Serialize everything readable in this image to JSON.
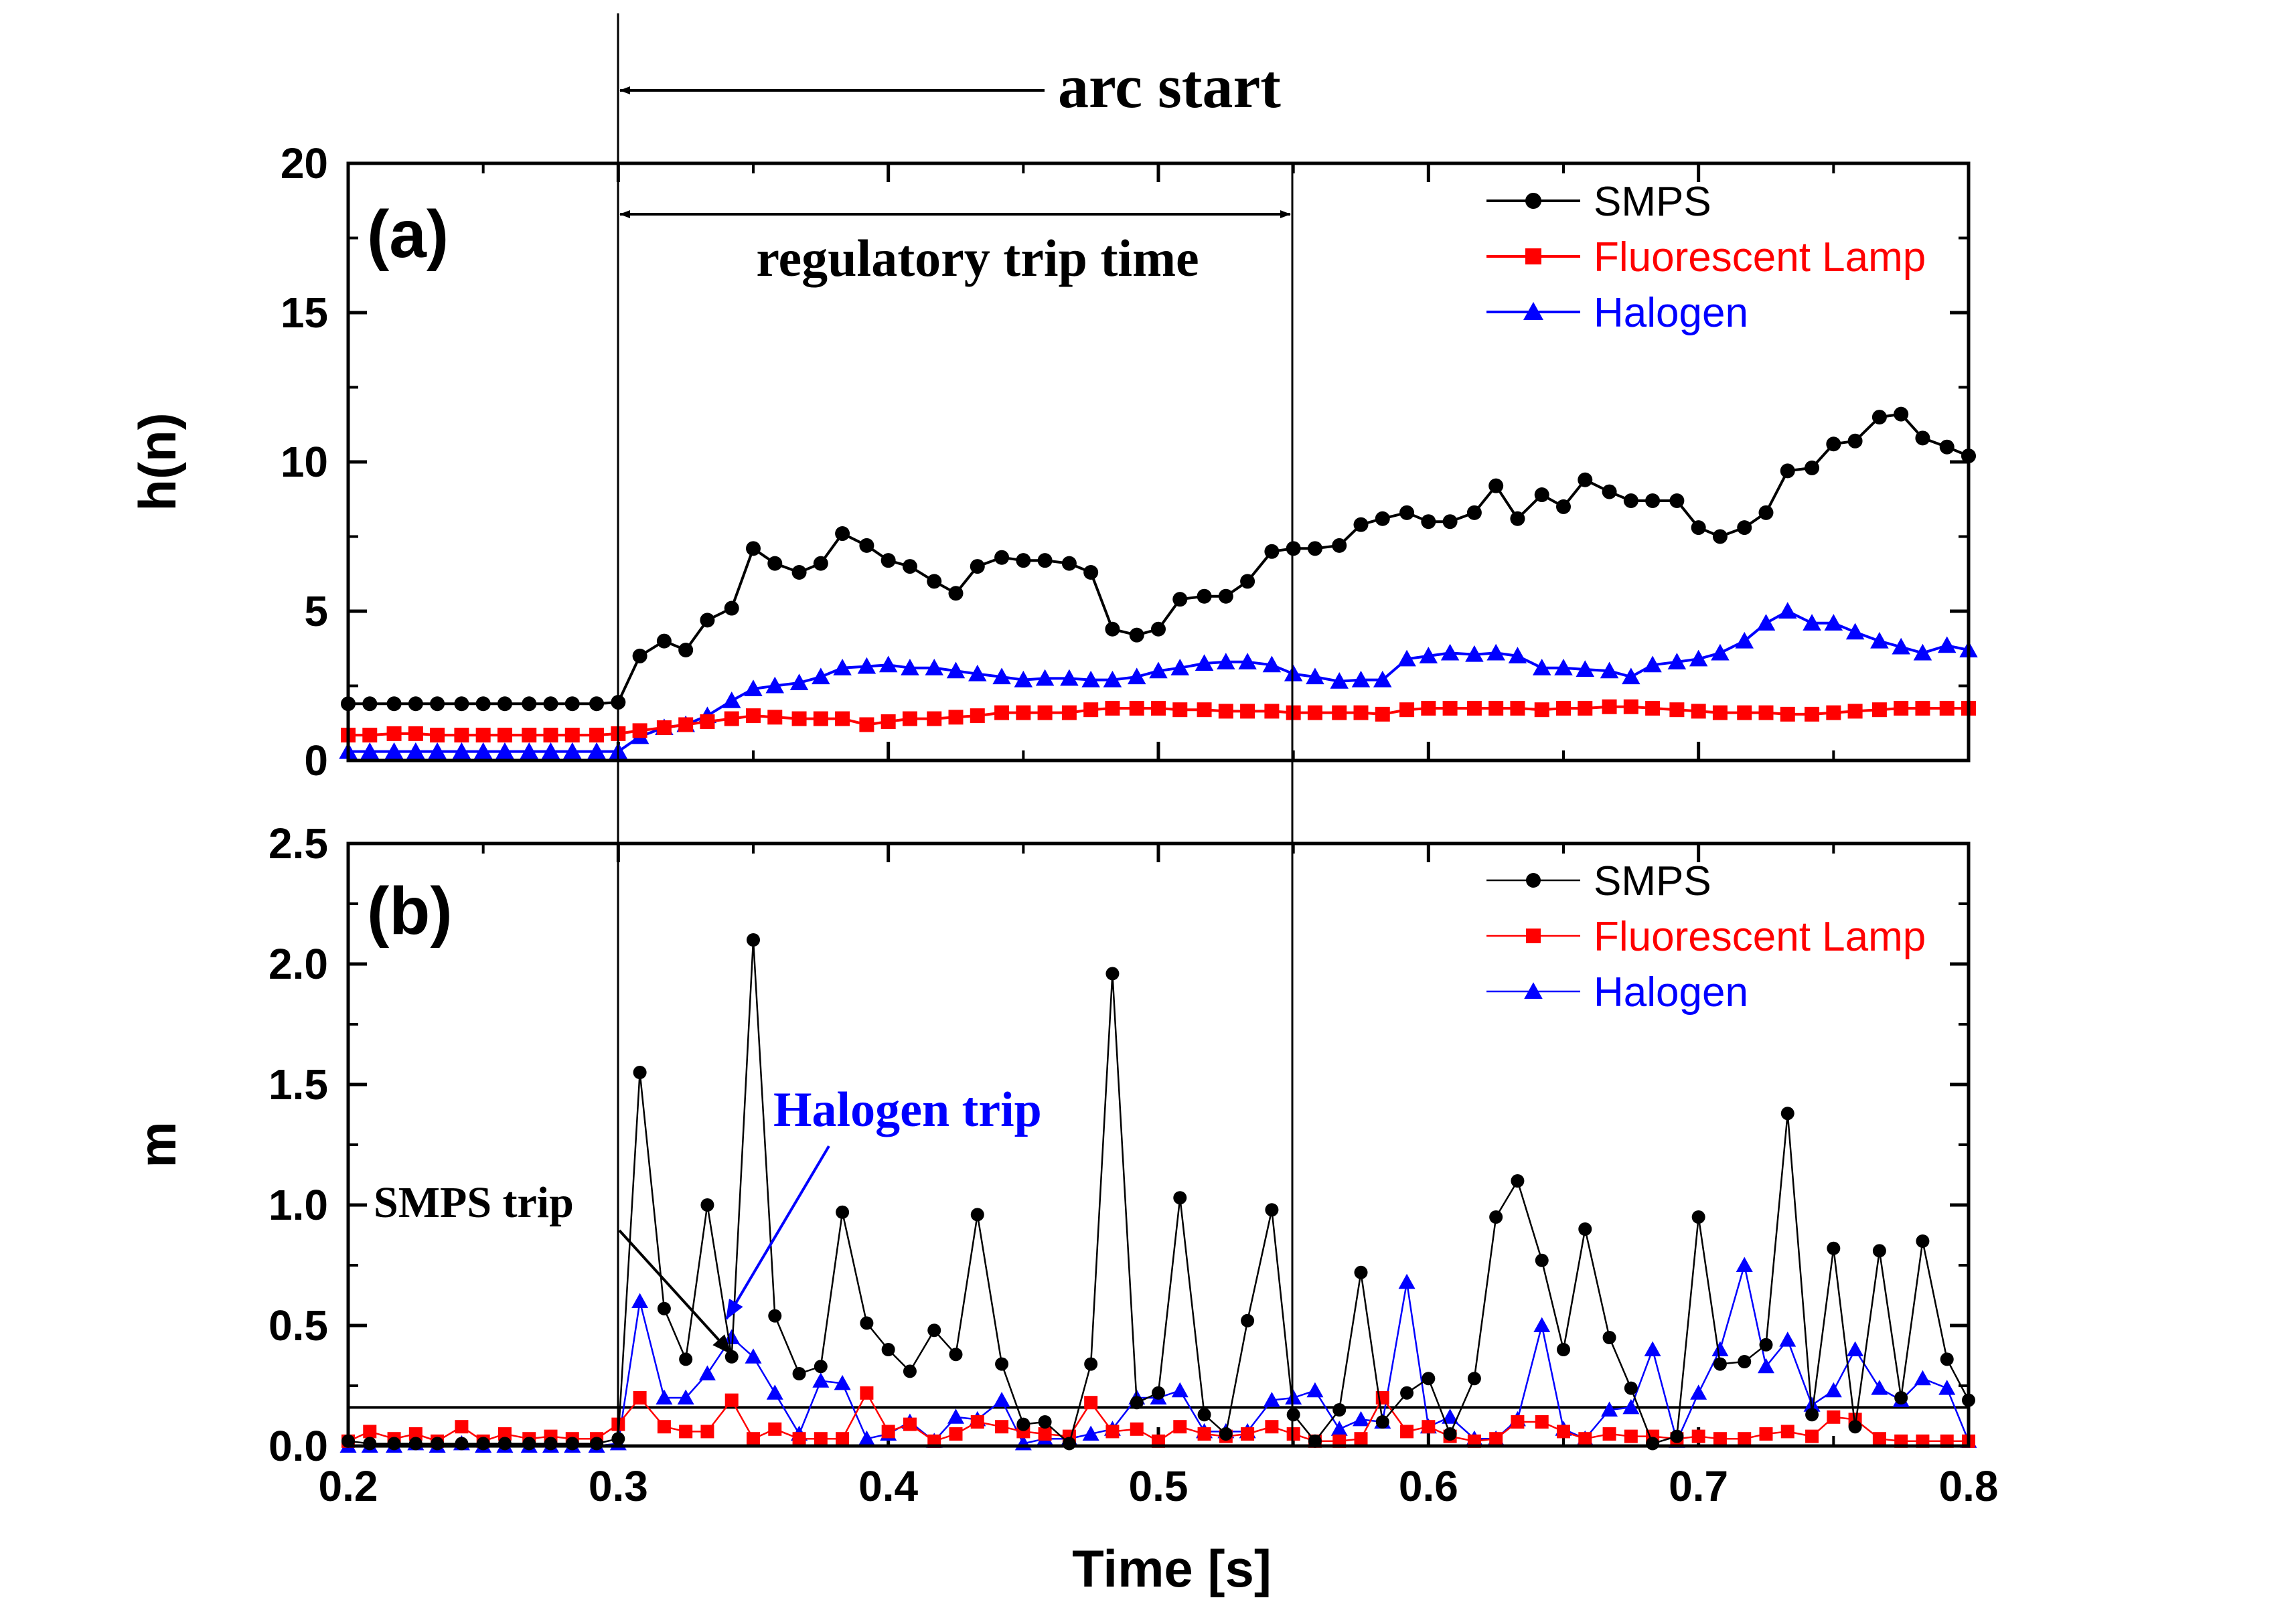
{
  "chart_data": [
    {
      "type": "line",
      "panel_label": "(a)",
      "ylabel": "h(n)",
      "xlabel": "",
      "xlim": [
        0.2,
        0.8
      ],
      "ylim": [
        0,
        20
      ],
      "x_ticks": [
        "0.2",
        "0.3",
        "0.4",
        "0.5",
        "0.6",
        "0.7",
        "0.8"
      ],
      "y_ticks": [
        "0",
        "5",
        "10",
        "15",
        "20"
      ],
      "legend": {
        "placement": "top-right"
      },
      "x": [
        0.2,
        0.208,
        0.217,
        0.225,
        0.233,
        0.242,
        0.25,
        0.258,
        0.267,
        0.275,
        0.283,
        0.292,
        0.3,
        0.308,
        0.317,
        0.325,
        0.333,
        0.342,
        0.35,
        0.358,
        0.367,
        0.375,
        0.383,
        0.392,
        0.4,
        0.408,
        0.417,
        0.425,
        0.433,
        0.442,
        0.45,
        0.458,
        0.467,
        0.475,
        0.483,
        0.492,
        0.5,
        0.508,
        0.517,
        0.525,
        0.533,
        0.542,
        0.55,
        0.558,
        0.567,
        0.575,
        0.583,
        0.592,
        0.6,
        0.608,
        0.617,
        0.625,
        0.633,
        0.642,
        0.65,
        0.658,
        0.667,
        0.675,
        0.683,
        0.692,
        0.7,
        0.708,
        0.717,
        0.725,
        0.733,
        0.742,
        0.75,
        0.758,
        0.767,
        0.775,
        0.783,
        0.792,
        0.8
      ],
      "series": [
        {
          "name": "SMPS",
          "color": "#000000",
          "marker": "circle",
          "values": [
            1.9,
            1.9,
            1.9,
            1.9,
            1.9,
            1.9,
            1.9,
            1.9,
            1.9,
            1.9,
            1.9,
            1.9,
            1.95,
            3.5,
            4.0,
            3.7,
            4.7,
            5.1,
            7.1,
            6.6,
            6.3,
            6.6,
            7.6,
            7.2,
            6.7,
            6.5,
            6.0,
            5.6,
            6.5,
            6.8,
            6.7,
            6.7,
            6.6,
            6.3,
            4.4,
            4.2,
            4.4,
            5.4,
            5.5,
            5.5,
            6.0,
            7.0,
            7.1,
            7.1,
            7.2,
            7.9,
            8.1,
            8.3,
            8.0,
            8.0,
            8.3,
            9.2,
            8.1,
            8.9,
            8.5,
            9.4,
            9.0,
            8.7,
            8.7,
            8.7,
            7.8,
            7.5,
            7.8,
            8.3,
            9.7,
            9.8,
            10.6,
            10.7,
            11.5,
            11.6,
            10.8,
            10.5,
            10.2
          ]
        },
        {
          "name": "Fluorescent Lamp",
          "color": "#ff0000",
          "marker": "square",
          "values": [
            0.85,
            0.85,
            0.9,
            0.9,
            0.85,
            0.85,
            0.85,
            0.85,
            0.85,
            0.85,
            0.85,
            0.85,
            0.9,
            1.0,
            1.1,
            1.2,
            1.3,
            1.4,
            1.5,
            1.45,
            1.4,
            1.4,
            1.4,
            1.2,
            1.3,
            1.4,
            1.4,
            1.45,
            1.5,
            1.6,
            1.6,
            1.6,
            1.6,
            1.7,
            1.75,
            1.75,
            1.75,
            1.7,
            1.7,
            1.65,
            1.65,
            1.65,
            1.6,
            1.6,
            1.6,
            1.6,
            1.55,
            1.7,
            1.75,
            1.75,
            1.75,
            1.75,
            1.75,
            1.7,
            1.75,
            1.75,
            1.8,
            1.8,
            1.75,
            1.7,
            1.65,
            1.6,
            1.6,
            1.6,
            1.55,
            1.55,
            1.6,
            1.65,
            1.7,
            1.75,
            1.75,
            1.75,
            1.75
          ]
        },
        {
          "name": "Halogen",
          "color": "#0000ff",
          "marker": "triangle",
          "values": [
            0.3,
            0.3,
            0.3,
            0.3,
            0.3,
            0.3,
            0.3,
            0.3,
            0.3,
            0.3,
            0.3,
            0.3,
            0.3,
            0.8,
            1.1,
            1.2,
            1.5,
            2.0,
            2.4,
            2.5,
            2.6,
            2.8,
            3.1,
            3.15,
            3.2,
            3.1,
            3.1,
            3.0,
            2.9,
            2.8,
            2.7,
            2.75,
            2.75,
            2.7,
            2.7,
            2.8,
            3.0,
            3.1,
            3.25,
            3.3,
            3.3,
            3.2,
            2.9,
            2.8,
            2.65,
            2.7,
            2.7,
            3.4,
            3.5,
            3.6,
            3.55,
            3.6,
            3.5,
            3.1,
            3.1,
            3.05,
            3.0,
            2.8,
            3.2,
            3.3,
            3.4,
            3.6,
            4.0,
            4.6,
            5.0,
            4.6,
            4.6,
            4.3,
            4.0,
            3.8,
            3.6,
            3.85,
            3.7
          ]
        }
      ],
      "annotations": {
        "arc_start": "arc start",
        "regulatory_trip_time": "regulatory trip time"
      }
    },
    {
      "type": "line",
      "panel_label": "(b)",
      "ylabel": "m",
      "xlabel": "Time [s]",
      "xlim": [
        0.2,
        0.8
      ],
      "ylim": [
        0,
        2.5
      ],
      "x_ticks": [
        "0.2",
        "0.3",
        "0.4",
        "0.5",
        "0.6",
        "0.7",
        "0.8"
      ],
      "y_ticks": [
        "0.0",
        "0.5",
        "1.0",
        "1.5",
        "2.0",
        "2.5"
      ],
      "legend": {
        "placement": "top-right"
      },
      "threshold": 0.16,
      "x": [
        0.2,
        0.208,
        0.217,
        0.225,
        0.233,
        0.242,
        0.25,
        0.258,
        0.267,
        0.275,
        0.283,
        0.292,
        0.3,
        0.308,
        0.317,
        0.325,
        0.333,
        0.342,
        0.35,
        0.358,
        0.367,
        0.375,
        0.383,
        0.392,
        0.4,
        0.408,
        0.417,
        0.425,
        0.433,
        0.442,
        0.45,
        0.458,
        0.467,
        0.475,
        0.483,
        0.492,
        0.5,
        0.508,
        0.517,
        0.525,
        0.533,
        0.542,
        0.55,
        0.558,
        0.567,
        0.575,
        0.583,
        0.592,
        0.6,
        0.608,
        0.617,
        0.625,
        0.633,
        0.642,
        0.65,
        0.658,
        0.667,
        0.675,
        0.683,
        0.692,
        0.7,
        0.708,
        0.717,
        0.725,
        0.733,
        0.742,
        0.75,
        0.758,
        0.767,
        0.775,
        0.783,
        0.792,
        0.8
      ],
      "series": [
        {
          "name": "SMPS",
          "color": "#000000",
          "marker": "circle",
          "values": [
            0.02,
            0.01,
            0.01,
            0.01,
            0.01,
            0.01,
            0.01,
            0.01,
            0.01,
            0.01,
            0.01,
            0.01,
            0.03,
            1.55,
            0.57,
            0.36,
            1.0,
            0.37,
            2.1,
            0.54,
            0.3,
            0.33,
            0.97,
            0.51,
            0.4,
            0.31,
            0.48,
            0.38,
            0.96,
            0.34,
            0.09,
            0.1,
            0.01,
            0.34,
            1.96,
            0.18,
            0.22,
            1.03,
            0.13,
            0.05,
            0.52,
            0.98,
            0.13,
            0.02,
            0.15,
            0.72,
            0.1,
            0.22,
            0.28,
            0.05,
            0.28,
            0.95,
            1.1,
            0.77,
            0.4,
            0.9,
            0.45,
            0.24,
            0.01,
            0.04,
            0.95,
            0.34,
            0.35,
            0.42,
            1.38,
            0.13,
            0.82,
            0.08,
            0.81,
            0.2,
            0.85,
            0.36,
            0.19
          ]
        },
        {
          "name": "Fluorescent Lamp",
          "color": "#ff0000",
          "marker": "square",
          "values": [
            0.02,
            0.06,
            0.03,
            0.05,
            0.02,
            0.08,
            0.02,
            0.05,
            0.03,
            0.04,
            0.03,
            0.03,
            0.09,
            0.2,
            0.08,
            0.06,
            0.06,
            0.19,
            0.03,
            0.07,
            0.03,
            0.03,
            0.03,
            0.22,
            0.06,
            0.09,
            0.02,
            0.05,
            0.1,
            0.08,
            0.06,
            0.05,
            0.04,
            0.18,
            0.06,
            0.07,
            0.02,
            0.08,
            0.05,
            0.04,
            0.05,
            0.08,
            0.05,
            0.02,
            0.02,
            0.03,
            0.2,
            0.06,
            0.08,
            0.04,
            0.02,
            0.03,
            0.1,
            0.1,
            0.06,
            0.03,
            0.05,
            0.04,
            0.04,
            0.03,
            0.04,
            0.03,
            0.03,
            0.05,
            0.06,
            0.04,
            0.12,
            0.11,
            0.03,
            0.02,
            0.02,
            0.02,
            0.02
          ]
        },
        {
          "name": "Halogen",
          "color": "#0000ff",
          "marker": "triangle",
          "values": [
            0.0,
            0.0,
            0.0,
            0.01,
            0.0,
            0.01,
            0.0,
            0.0,
            0.0,
            0.0,
            0.0,
            0.0,
            0.01,
            0.6,
            0.2,
            0.2,
            0.3,
            0.45,
            0.37,
            0.22,
            0.05,
            0.27,
            0.26,
            0.03,
            0.05,
            0.1,
            0.02,
            0.12,
            0.11,
            0.19,
            0.01,
            0.03,
            0.03,
            0.05,
            0.07,
            0.2,
            0.2,
            0.23,
            0.06,
            0.06,
            0.06,
            0.19,
            0.2,
            0.23,
            0.07,
            0.11,
            0.1,
            0.68,
            0.08,
            0.12,
            0.03,
            0.03,
            0.11,
            0.5,
            0.07,
            0.03,
            0.15,
            0.16,
            0.4,
            0.02,
            0.22,
            0.4,
            0.75,
            0.33,
            0.44,
            0.17,
            0.23,
            0.4,
            0.24,
            0.19,
            0.28,
            0.24,
            0.02
          ]
        }
      ],
      "annotations": {
        "smps_trip": "SMPS trip",
        "halogen_trip": "Halogen trip"
      }
    }
  ]
}
